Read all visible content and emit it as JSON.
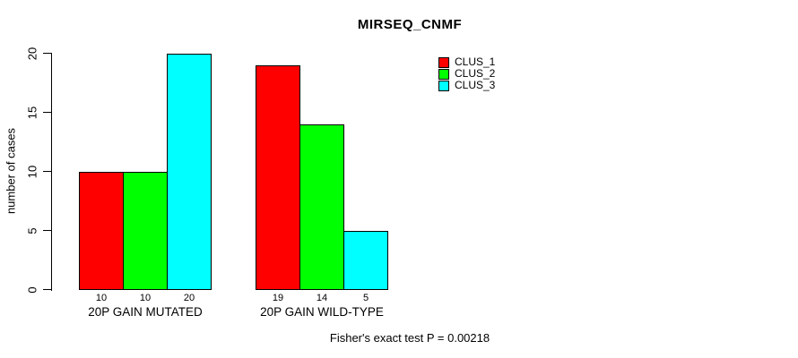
{
  "chart_data": {
    "type": "bar",
    "title": "MIRSEQ_CNMF",
    "xlabel": "",
    "ylabel": "number of cases",
    "categories": [
      "20P GAIN MUTATED",
      "20P GAIN WILD-TYPE"
    ],
    "series": [
      {
        "name": "CLUS_1",
        "color": "#ff0000",
        "values": [
          10,
          19
        ]
      },
      {
        "name": "CLUS_2",
        "color": "#00ff00",
        "values": [
          10,
          14
        ]
      },
      {
        "name": "CLUS_3",
        "color": "#00ffff",
        "values": [
          20,
          5
        ]
      }
    ],
    "ylim": [
      0,
      20
    ],
    "yticks": [
      0,
      5,
      10,
      15,
      20
    ],
    "grid": false,
    "legend_position": "top-right",
    "annotation": "Fisher's exact test P = 0.00218",
    "bar_border_color": "#000000",
    "axis_color": "#000000",
    "background_color": "#ffffff"
  }
}
